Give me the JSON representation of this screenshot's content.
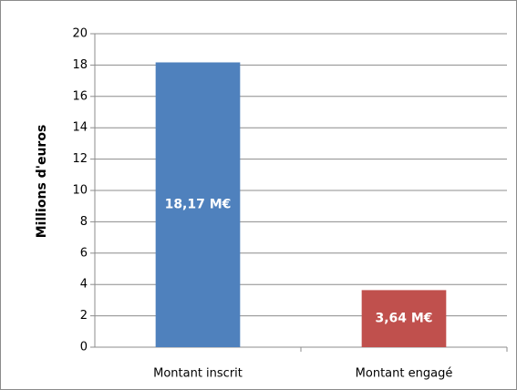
{
  "chart_data": {
    "type": "bar",
    "y_label": "Millions d'euros",
    "categories": [
      "Montant inscrit",
      "Montant engagé"
    ],
    "values": [
      18.17,
      3.64
    ],
    "value_labels": [
      "18,17 M€",
      "3,64 M€"
    ],
    "colors": [
      "#4f81bd",
      "#c0504d"
    ],
    "ylim": [
      0,
      20
    ],
    "yticks": [
      0,
      2,
      4,
      6,
      8,
      10,
      12,
      14,
      16,
      18,
      20
    ],
    "grid": true
  }
}
